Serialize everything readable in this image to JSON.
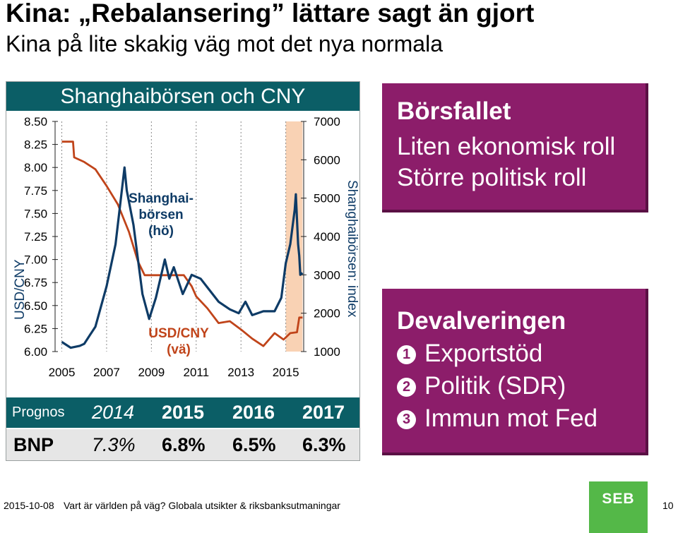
{
  "title": "Kina: „Rebalansering” lättare sagt än gjort",
  "subtitle": "Kina på lite skakig väg mot det nya normala",
  "chart_panel": {
    "header": "Shanghaibörsen och CNY",
    "left_axis_title": "USD/CNY",
    "right_axis_title": "Shanghaibörsen: index",
    "label_shanghai": [
      "Shanghai-",
      "börsen",
      "(hö)"
    ],
    "label_cny": [
      "USD/CNY",
      "(vä)"
    ]
  },
  "chart_data": {
    "type": "line",
    "x_ticks": [
      "2005",
      "2007",
      "2009",
      "2011",
      "2013",
      "2015"
    ],
    "xlim": [
      2004.7,
      2015.8
    ],
    "left_axis": {
      "label": "USD/CNY",
      "ticks": [
        "8.50",
        "8.25",
        "8.00",
        "7.75",
        "7.50",
        "7.25",
        "7.00",
        "6.75",
        "6.50",
        "6.25",
        "6.00"
      ],
      "ylim": [
        6.0,
        8.5
      ]
    },
    "right_axis": {
      "label": "Shanghaibörsen: index",
      "ticks": [
        "7000",
        "6000",
        "5000",
        "4000",
        "3000",
        "2000",
        "1000"
      ],
      "ylim": [
        1000,
        7000
      ]
    },
    "highlight_range": [
      2015.0,
      2015.75
    ],
    "series": [
      {
        "name": "USD/CNY",
        "axis": "left",
        "color": "#c0441a",
        "points": [
          [
            2005.0,
            8.28
          ],
          [
            2005.5,
            8.28
          ],
          [
            2005.55,
            8.11
          ],
          [
            2006.0,
            8.06
          ],
          [
            2006.5,
            7.98
          ],
          [
            2007.0,
            7.8
          ],
          [
            2007.5,
            7.6
          ],
          [
            2008.0,
            7.3
          ],
          [
            2008.4,
            6.98
          ],
          [
            2008.7,
            6.83
          ],
          [
            2009.0,
            6.83
          ],
          [
            2009.5,
            6.83
          ],
          [
            2010.0,
            6.83
          ],
          [
            2010.45,
            6.83
          ],
          [
            2010.8,
            6.71
          ],
          [
            2011.0,
            6.6
          ],
          [
            2011.5,
            6.47
          ],
          [
            2012.0,
            6.31
          ],
          [
            2012.5,
            6.33
          ],
          [
            2013.0,
            6.24
          ],
          [
            2013.5,
            6.14
          ],
          [
            2014.0,
            6.06
          ],
          [
            2014.5,
            6.2
          ],
          [
            2014.9,
            6.13
          ],
          [
            2015.2,
            6.2
          ],
          [
            2015.5,
            6.21
          ],
          [
            2015.6,
            6.37
          ],
          [
            2015.75,
            6.37
          ]
        ]
      },
      {
        "name": "Shanghaibörsen",
        "axis": "right",
        "color": "#0e3b66",
        "points": [
          [
            2005.0,
            1250
          ],
          [
            2005.4,
            1100
          ],
          [
            2005.8,
            1150
          ],
          [
            2006.0,
            1200
          ],
          [
            2006.5,
            1650
          ],
          [
            2007.0,
            2700
          ],
          [
            2007.4,
            3800
          ],
          [
            2007.8,
            5800
          ],
          [
            2007.9,
            5200
          ],
          [
            2008.2,
            4300
          ],
          [
            2008.6,
            2500
          ],
          [
            2008.9,
            1850
          ],
          [
            2009.2,
            2400
          ],
          [
            2009.6,
            3400
          ],
          [
            2009.8,
            2900
          ],
          [
            2010.0,
            3200
          ],
          [
            2010.4,
            2500
          ],
          [
            2010.8,
            3000
          ],
          [
            2011.2,
            2900
          ],
          [
            2011.6,
            2600
          ],
          [
            2012.0,
            2300
          ],
          [
            2012.5,
            2100
          ],
          [
            2012.9,
            2000
          ],
          [
            2013.2,
            2300
          ],
          [
            2013.5,
            1950
          ],
          [
            2014.0,
            2050
          ],
          [
            2014.5,
            2050
          ],
          [
            2014.8,
            2400
          ],
          [
            2015.0,
            3300
          ],
          [
            2015.2,
            3800
          ],
          [
            2015.4,
            4700
          ],
          [
            2015.45,
            5100
          ],
          [
            2015.55,
            3800
          ],
          [
            2015.6,
            3500
          ],
          [
            2015.65,
            3000
          ],
          [
            2015.75,
            3050
          ]
        ]
      }
    ]
  },
  "forecast_table": {
    "prognos_label": "Prognos",
    "years": [
      "2014",
      "2015",
      "2016",
      "2017"
    ],
    "bnp_label": "BNP",
    "bnp_values": [
      "7.3%",
      "6.8%",
      "6.5%",
      "6.3%"
    ]
  },
  "box1": {
    "heading": "Börsfallet",
    "lines": [
      "Liten ekonomisk roll",
      "Större politisk roll"
    ]
  },
  "box2": {
    "heading": "Devalveringen",
    "items": [
      {
        "marker": "1",
        "text": "Exportstöd"
      },
      {
        "marker": "2",
        "text": "Politik (SDR)"
      },
      {
        "marker": "3",
        "text": "Immun mot Fed"
      }
    ]
  },
  "footer": {
    "date": "2015-10-08",
    "text": "Vart är världen på väg? Globala utsikter & riksbanksutmaningar",
    "page": "10",
    "logo": "SEB"
  },
  "colors": {
    "teal": "#0b5e66",
    "purple": "#8c1d6a",
    "cny_line": "#c0441a",
    "index_line": "#0e3b66",
    "highlight": "#f9d2b4",
    "seb_green": "#54b848"
  }
}
